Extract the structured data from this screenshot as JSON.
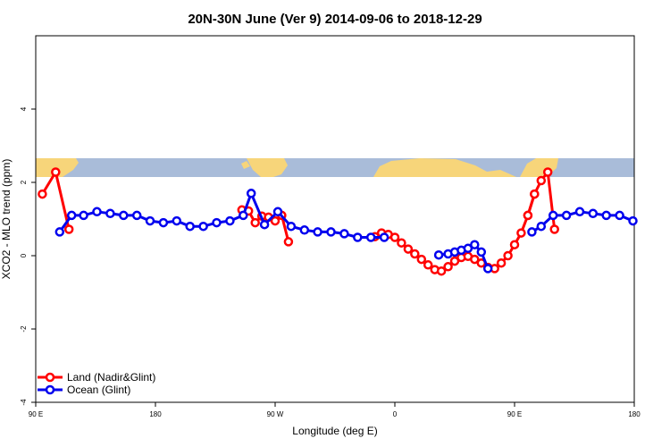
{
  "chart_data": {
    "type": "line",
    "title": "20N-30N June (Ver 9)   2014-09-06 to 2018-12-29",
    "xlabel": "Longitude (deg E)",
    "ylabel": "XCO2 - MLO trend (ppm)",
    "xlim": [
      90,
      540
    ],
    "ylim": [
      -4,
      6
    ],
    "x_ticks": [
      {
        "value": 90,
        "label": "90 E"
      },
      {
        "value": 180,
        "label": "180"
      },
      {
        "value": 270,
        "label": "90 W"
      },
      {
        "value": 360,
        "label": "0"
      },
      {
        "value": 450,
        "label": "90 E"
      },
      {
        "value": 540,
        "label": "180"
      }
    ],
    "y_ticks": [
      {
        "value": -4,
        "label": "-4"
      },
      {
        "value": -2,
        "label": "-2"
      },
      {
        "value": 0,
        "label": "0"
      },
      {
        "value": 2,
        "label": "2"
      },
      {
        "value": 4,
        "label": "4"
      }
    ],
    "map_strip": {
      "y_range": [
        2.0,
        2.5
      ],
      "ocean_color": "#a9bcd9",
      "land_color": "#f7d57a"
    },
    "series": [
      {
        "name": "Land (Nadir&Glint)",
        "color": "#ff0000",
        "segments": [
          {
            "x": [
              95,
              105,
              115
            ],
            "y": [
              1.68,
              2.28,
              0.72
            ]
          },
          {
            "x": [
              245,
              250,
              255,
              260,
              265,
              270,
              275,
              280
            ],
            "y": [
              1.25,
              1.22,
              0.9,
              1.08,
              1.05,
              0.95,
              1.1,
              0.38
            ]
          },
          {
            "x": [
              345,
              350,
              355,
              360,
              365,
              370,
              375,
              380,
              385,
              390,
              395,
              400,
              405,
              410,
              415,
              420,
              425,
              430,
              435,
              440,
              445,
              450,
              455,
              460,
              465
            ],
            "y": [
              0.52,
              0.62,
              0.58,
              0.5,
              0.35,
              0.18,
              0.05,
              -0.1,
              -0.25,
              -0.38,
              -0.42,
              -0.3,
              -0.15,
              -0.05,
              -0.02,
              -0.1,
              -0.2,
              -0.32,
              -0.35,
              -0.2,
              0.0,
              0.3,
              0.62,
              1.1,
              1.68
            ]
          },
          {
            "x": [
              460,
              465,
              470,
              475,
              480
            ],
            "y": [
              1.1,
              1.68,
              2.05,
              2.28,
              0.72
            ]
          }
        ]
      },
      {
        "name": "Ocean (Glint)",
        "color": "#0000ee",
        "segments": [
          {
            "x": [
              108,
              117,
              126,
              136,
              146,
              156,
              166,
              176,
              186,
              196,
              206,
              216,
              226,
              236,
              246,
              252,
              262,
              272,
              282,
              292,
              302,
              312,
              322,
              332,
              342,
              352
            ],
            "y": [
              0.65,
              1.1,
              1.1,
              1.2,
              1.15,
              1.1,
              1.1,
              0.95,
              0.9,
              0.95,
              0.8,
              0.8,
              0.9,
              0.95,
              1.1,
              1.7,
              0.85,
              1.2,
              0.8,
              0.7,
              0.65,
              0.65,
              0.6,
              0.5,
              0.5,
              0.5
            ]
          },
          {
            "x": [
              393,
              400,
              405,
              410,
              415,
              420,
              425,
              430
            ],
            "y": [
              0.02,
              0.05,
              0.1,
              0.15,
              0.2,
              0.3,
              0.1,
              -0.35
            ]
          },
          {
            "x": [
              463,
              470,
              479,
              489,
              499,
              509,
              519,
              529,
              539
            ],
            "y": [
              0.65,
              0.8,
              1.1,
              1.1,
              1.2,
              1.15,
              1.1,
              1.1,
              0.95
            ]
          }
        ]
      }
    ],
    "legend": {
      "position": "bottom-left",
      "entries": [
        "Land (Nadir&Glint)",
        "Ocean (Glint)"
      ]
    }
  }
}
